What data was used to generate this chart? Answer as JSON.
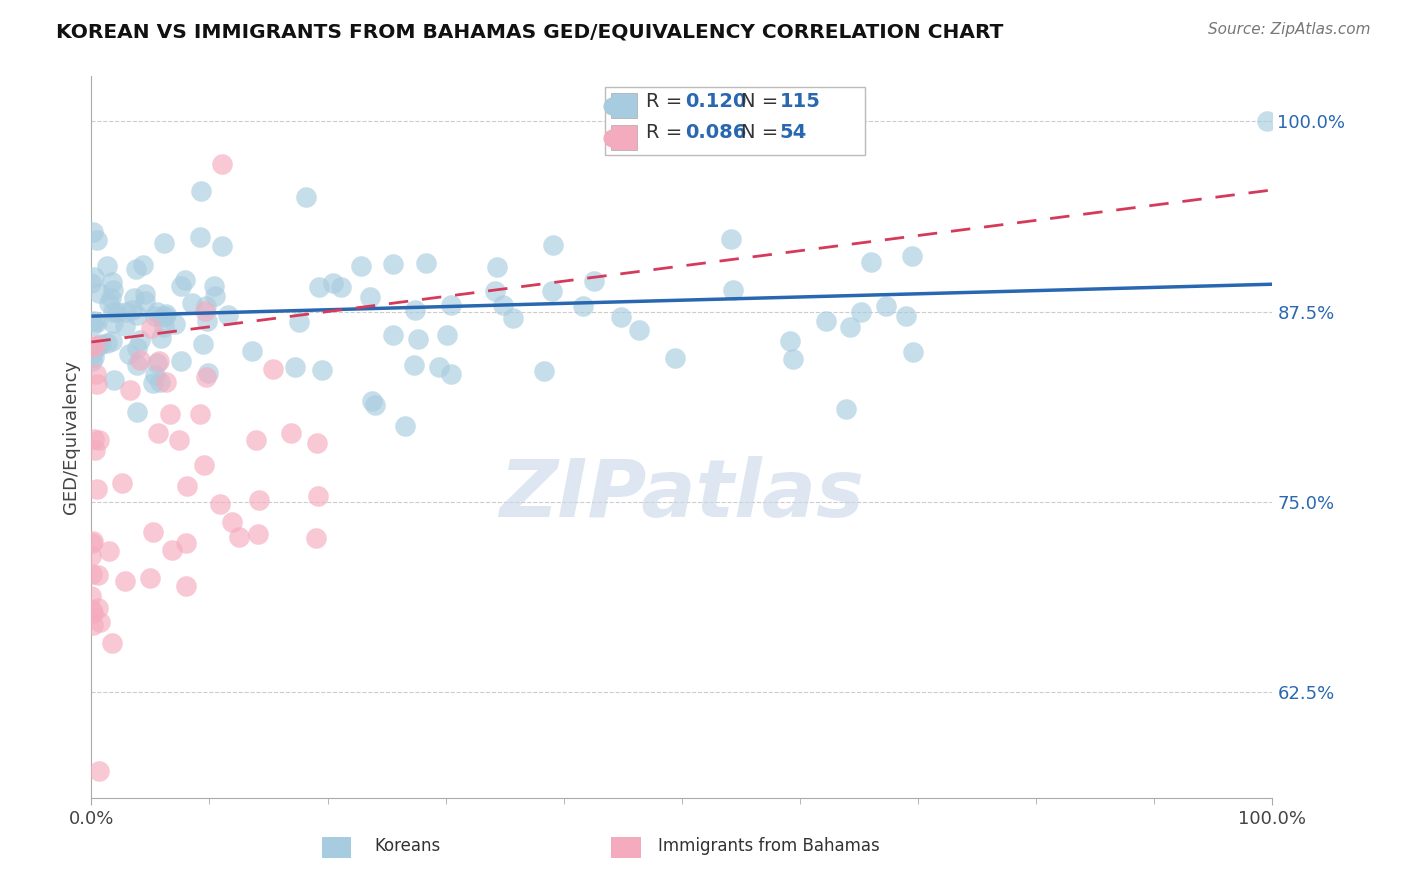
{
  "title": "KOREAN VS IMMIGRANTS FROM BAHAMAS GED/EQUIVALENCY CORRELATION CHART",
  "source": "Source: ZipAtlas.com",
  "ylabel": "GED/Equivalency",
  "ytick_labels": [
    "62.5%",
    "75.0%",
    "87.5%",
    "100.0%"
  ],
  "ytick_values": [
    0.625,
    0.75,
    0.875,
    1.0
  ],
  "xlim": [
    0.0,
    1.0
  ],
  "ylim": [
    0.555,
    1.03
  ],
  "legend_labels": [
    "Koreans",
    "Immigrants from Bahamas"
  ],
  "legend_R": [
    0.12,
    0.086
  ],
  "legend_N": [
    115,
    54
  ],
  "blue_scatter_color": "#A8CCDF",
  "pink_scatter_color": "#F5ABBE",
  "blue_line_color": "#2968B0",
  "pink_line_color": "#D63A5A",
  "text_color_blue": "#2968B0",
  "watermark_color": "#C8D8E8",
  "watermark_text": "ZIPatlas",
  "bottom_legend_x_labels": [
    "0.0%",
    "100.0%"
  ]
}
